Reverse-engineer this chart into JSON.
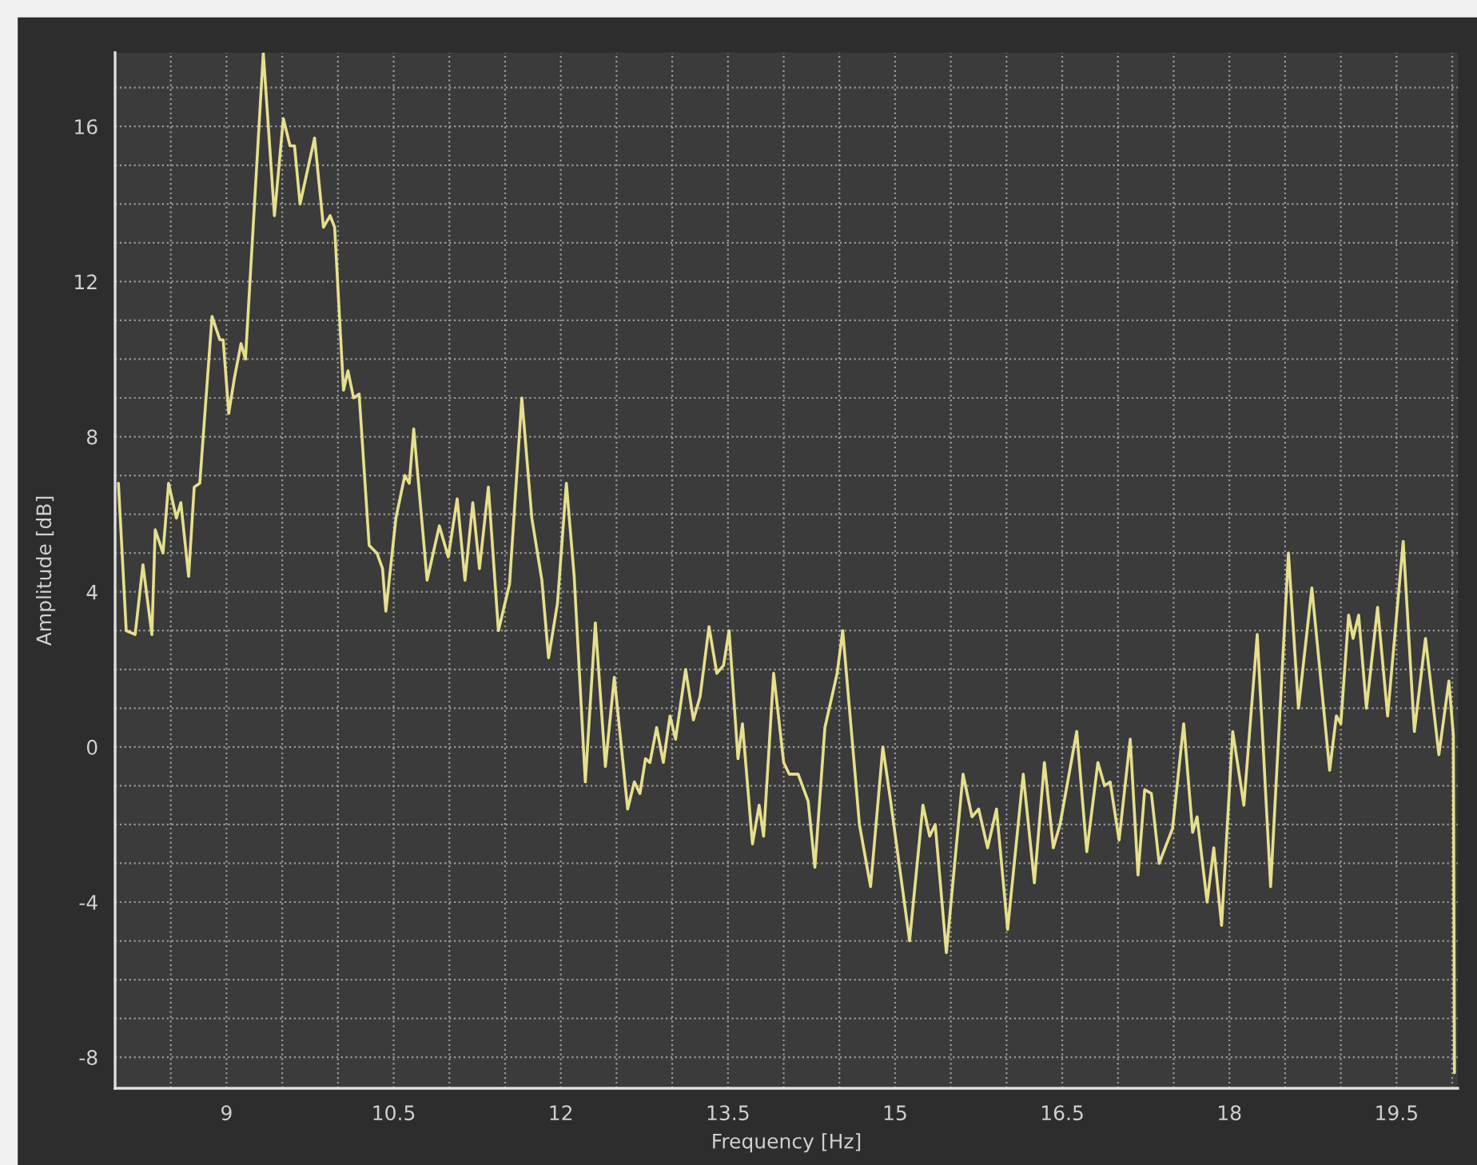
{
  "chart_data": {
    "type": "line",
    "xlabel": "Frequency [Hz]",
    "ylabel": "Amplitude [dB]",
    "xlim": [
      8.0,
      20.05
    ],
    "ylim": [
      -8.8,
      17.9
    ],
    "xticks": [
      {
        "value": 8.5,
        "label": null
      },
      9,
      {
        "value": 9.5,
        "label": null
      },
      {
        "value": 10,
        "label": null
      },
      10.5,
      {
        "value": 11,
        "label": null
      },
      {
        "value": 11.5,
        "label": null
      },
      12,
      {
        "value": 12.5,
        "label": null
      },
      {
        "value": 13,
        "label": null
      },
      13.5,
      {
        "value": 14,
        "label": null
      },
      {
        "value": 14.5,
        "label": null
      },
      15,
      {
        "value": 15.5,
        "label": null
      },
      {
        "value": 16,
        "label": null
      },
      16.5,
      {
        "value": 17,
        "label": null
      },
      {
        "value": 17.5,
        "label": null
      },
      18,
      {
        "value": 18.5,
        "label": null
      },
      {
        "value": 19,
        "label": null
      },
      19.5,
      {
        "value": 20,
        "label": null
      }
    ],
    "yticks": [
      -8,
      {
        "value": -7,
        "label": null
      },
      {
        "value": -6,
        "label": null
      },
      {
        "value": -5,
        "label": null
      },
      -4,
      {
        "value": -3,
        "label": null
      },
      {
        "value": -2,
        "label": null
      },
      {
        "value": -1,
        "label": null
      },
      0,
      {
        "value": 1,
        "label": null
      },
      {
        "value": 2,
        "label": null
      },
      {
        "value": 3,
        "label": null
      },
      4,
      {
        "value": 5,
        "label": null
      },
      {
        "value": 6,
        "label": null
      },
      {
        "value": 7,
        "label": null
      },
      8,
      {
        "value": 9,
        "label": null
      },
      {
        "value": 10,
        "label": null
      },
      {
        "value": 11,
        "label": null
      },
      12,
      {
        "value": 13,
        "label": null
      },
      {
        "value": 14,
        "label": null
      },
      {
        "value": 15,
        "label": null
      },
      16,
      {
        "value": 17,
        "label": null
      }
    ],
    "grid": true,
    "line_style": "dotted",
    "legend": false,
    "x": [
      8.03,
      8.1,
      8.18,
      8.25,
      8.33,
      8.36,
      8.43,
      8.48,
      8.55,
      8.59,
      8.66,
      8.71,
      8.76,
      8.87,
      8.94,
      8.97,
      9.02,
      9.07,
      9.13,
      9.17,
      9.33,
      9.43,
      9.51,
      9.57,
      9.61,
      9.66,
      9.79,
      9.87,
      9.93,
      9.97,
      10.05,
      10.09,
      10.14,
      10.19,
      10.28,
      10.35,
      10.4,
      10.43,
      10.52,
      10.6,
      10.64,
      10.68,
      10.8,
      10.91,
      10.99,
      11.07,
      11.14,
      11.21,
      11.27,
      11.35,
      11.44,
      11.54,
      11.65,
      11.74,
      11.83,
      11.89,
      11.97,
      12.05,
      12.12,
      12.22,
      12.31,
      12.4,
      12.48,
      12.6,
      12.66,
      12.71,
      12.76,
      12.8,
      12.86,
      12.92,
      12.98,
      13.03,
      13.12,
      13.19,
      13.25,
      13.33,
      13.4,
      13.46,
      13.51,
      13.59,
      13.63,
      13.72,
      13.78,
      13.82,
      13.91,
      14.0,
      14.05,
      14.13,
      14.22,
      14.28,
      14.37,
      14.48,
      14.53,
      14.68,
      14.78,
      14.89,
      14.96,
      15.13,
      15.25,
      15.31,
      15.36,
      15.46,
      15.61,
      15.69,
      15.75,
      15.83,
      15.91,
      16.01,
      16.15,
      16.25,
      16.34,
      16.42,
      16.48,
      16.63,
      16.72,
      16.82,
      16.88,
      16.93,
      17.01,
      17.11,
      17.18,
      17.24,
      17.3,
      17.37,
      17.49,
      17.59,
      17.67,
      17.71,
      17.8,
      17.86,
      17.93,
      18.03,
      18.13,
      18.25,
      18.37,
      18.53,
      18.62,
      18.74,
      18.9,
      18.96,
      19.0,
      19.07,
      19.11,
      19.16,
      19.23,
      19.33,
      19.42,
      19.56,
      19.66,
      19.76,
      19.88,
      19.97,
      20.01,
      20.02
    ],
    "series": [
      {
        "color": "#e6df8c",
        "line_style": "solid",
        "values": [
          6.8,
          3.0,
          2.9,
          4.7,
          2.9,
          5.6,
          5.0,
          6.8,
          5.9,
          6.3,
          4.4,
          6.7,
          6.8,
          11.1,
          10.5,
          10.5,
          8.6,
          9.5,
          10.4,
          10.0,
          17.9,
          13.7,
          16.2,
          15.5,
          15.5,
          14.0,
          15.7,
          13.4,
          13.7,
          13.4,
          9.2,
          9.7,
          9.0,
          9.1,
          5.2,
          5.0,
          4.6,
          3.5,
          5.9,
          7.0,
          6.8,
          8.2,
          4.3,
          5.7,
          4.9,
          6.4,
          4.3,
          6.3,
          4.6,
          6.7,
          3.0,
          4.2,
          9.0,
          5.9,
          4.3,
          2.3,
          3.7,
          6.8,
          4.4,
          -0.9,
          3.2,
          -0.5,
          1.8,
          -1.6,
          -0.9,
          -1.2,
          -0.3,
          -0.4,
          0.5,
          -0.4,
          0.8,
          0.2,
          2.0,
          0.7,
          1.3,
          3.1,
          1.9,
          2.1,
          3.0,
          -0.3,
          0.6,
          -2.5,
          -1.5,
          -2.3,
          1.9,
          -0.4,
          -0.7,
          -0.7,
          -1.4,
          -3.1,
          0.5,
          1.9,
          3.0,
          -2.0,
          -3.6,
          0.0,
          -1.4,
          -5.0,
          -1.5,
          -2.3,
          -2.0,
          -5.3,
          -0.7,
          -1.8,
          -1.6,
          -2.6,
          -1.6,
          -4.7,
          -0.7,
          -3.5,
          -0.4,
          -2.6,
          -2.0,
          0.4,
          -2.7,
          -0.4,
          -1.0,
          -0.9,
          -2.4,
          0.2,
          -3.3,
          -1.1,
          -1.2,
          -3.0,
          -2.1,
          0.6,
          -2.2,
          -1.8,
          -4.0,
          -2.6,
          -4.6,
          0.4,
          -1.5,
          2.9,
          -3.6,
          5.0,
          1.0,
          4.1,
          -0.6,
          0.8,
          0.6,
          3.4,
          2.8,
          3.4,
          1.0,
          3.6,
          0.8,
          5.3,
          0.4,
          2.8,
          -0.2,
          1.7,
          0.3,
          -8.4
        ]
      }
    ]
  }
}
